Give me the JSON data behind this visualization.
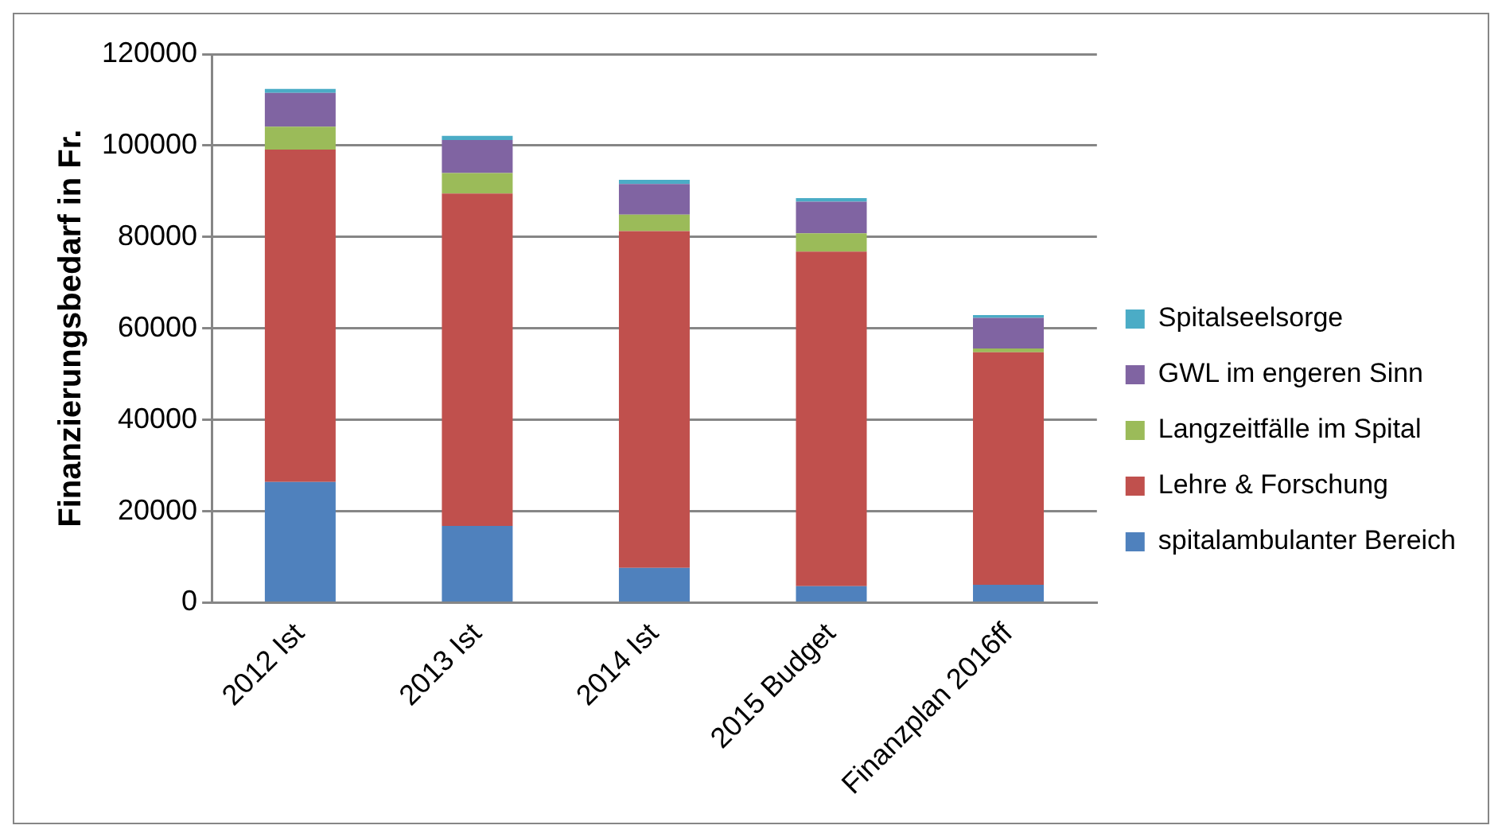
{
  "chart_data": {
    "type": "bar",
    "stacked": true,
    "ylabel": "Finanzierungsbedarf in Fr.",
    "categories": [
      "2012 Ist",
      "2013 Ist",
      "2014 Ist",
      "2015 Budget",
      "Finanzplan 2016ff"
    ],
    "series": [
      {
        "name": "spitalambulanter Bereich",
        "color": "#4f81bd",
        "values": [
          26400,
          16800,
          7600,
          3600,
          3900
        ]
      },
      {
        "name": "Lehre & Forschung",
        "color": "#c0504d",
        "values": [
          72700,
          72700,
          73700,
          73200,
          50900
        ]
      },
      {
        "name": "Langzeitfälle im Spital",
        "color": "#9bbb59",
        "values": [
          5000,
          4500,
          3600,
          4000,
          800
        ]
      },
      {
        "name": "GWL im engeren Sinn",
        "color": "#8064a2",
        "values": [
          7400,
          7200,
          6700,
          6900,
          6700
        ]
      },
      {
        "name": "Spitalseelsorge",
        "color": "#4bacc6",
        "values": [
          900,
          900,
          900,
          800,
          600
        ]
      }
    ],
    "ylim": [
      0,
      120000
    ],
    "yticks": [
      0,
      20000,
      40000,
      60000,
      80000,
      100000,
      120000
    ],
    "grid": "y",
    "legend": "right"
  }
}
